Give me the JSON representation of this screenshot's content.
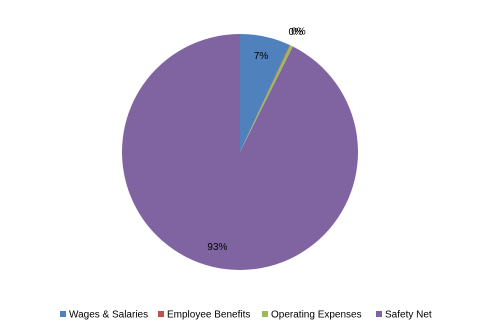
{
  "chart_data": {
    "type": "pie",
    "categories": [
      "Wages & Salaries",
      "Employee Benefits",
      "Operating Expenses",
      "Safety Net"
    ],
    "values": [
      6.9,
      0.1,
      0.4,
      92.6
    ],
    "value_labels": [
      "7%",
      "0%",
      "0%",
      "93%"
    ],
    "colors": [
      "#4f81bd",
      "#c0504d",
      "#9bbb59",
      "#8064a2"
    ],
    "legend": "bottom"
  }
}
